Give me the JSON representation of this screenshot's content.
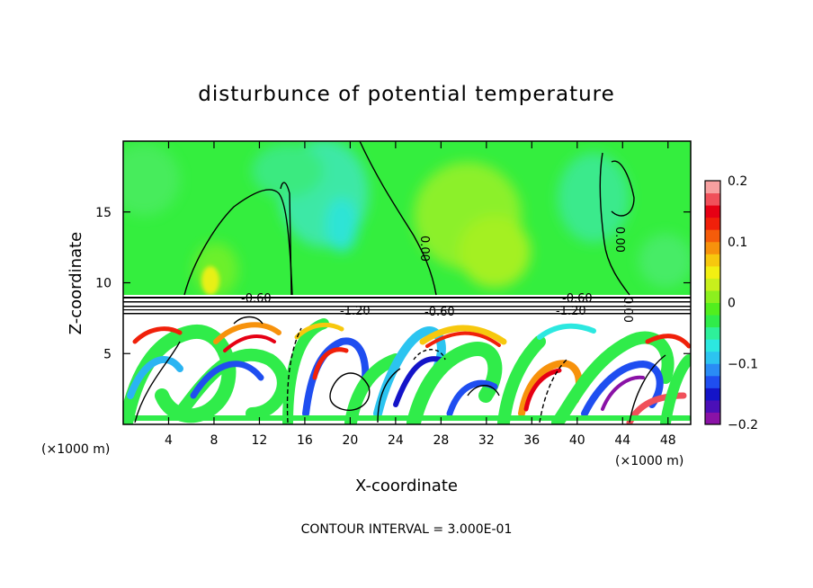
{
  "chart_data": {
    "type": "heatmap",
    "title": "disturbunce of potential temperature",
    "xlabel": "X-coordinate",
    "ylabel": "Z-coordinate",
    "x_unit_left": "(×1000 m)",
    "x_unit_right": "(×1000 m)",
    "xlim": [
      0,
      50
    ],
    "ylim": [
      0,
      20
    ],
    "xticks": [
      4,
      8,
      12,
      16,
      20,
      24,
      28,
      32,
      36,
      40,
      44,
      48
    ],
    "yticks": [
      5,
      10,
      15
    ],
    "colorbar": {
      "min": -0.2,
      "max": 0.2,
      "ticks": [
        {
          "value": 0.2,
          "label": "0.2"
        },
        {
          "value": 0.1,
          "label": "0.1"
        },
        {
          "value": 0.0,
          "label": "0"
        },
        {
          "value": -0.1,
          "label": "−0.1"
        },
        {
          "value": -0.2,
          "label": "−0.2"
        }
      ],
      "colors": [
        "#8a12a6",
        "#4b0fb8",
        "#1414c8",
        "#1f4ef0",
        "#2a8cf5",
        "#2cc4f0",
        "#2ce8e0",
        "#2ef09a",
        "#30ec4a",
        "#52ee1e",
        "#8cf01e",
        "#c8f01c",
        "#f2f012",
        "#f7c80e",
        "#f7920c",
        "#f55c0a",
        "#f0200a",
        "#e60014",
        "#f0505a",
        "#f7a0a0"
      ]
    },
    "contour_interval_text": "CONTOUR INTERVAL = 3.000E-01",
    "contour_labels": [
      "0.00",
      "0.00",
      "0.00",
      "-0.60",
      "-0.60",
      "-1.20",
      "-1.20",
      "-0.60"
    ],
    "grid": false,
    "legend": "colorbar-right"
  }
}
